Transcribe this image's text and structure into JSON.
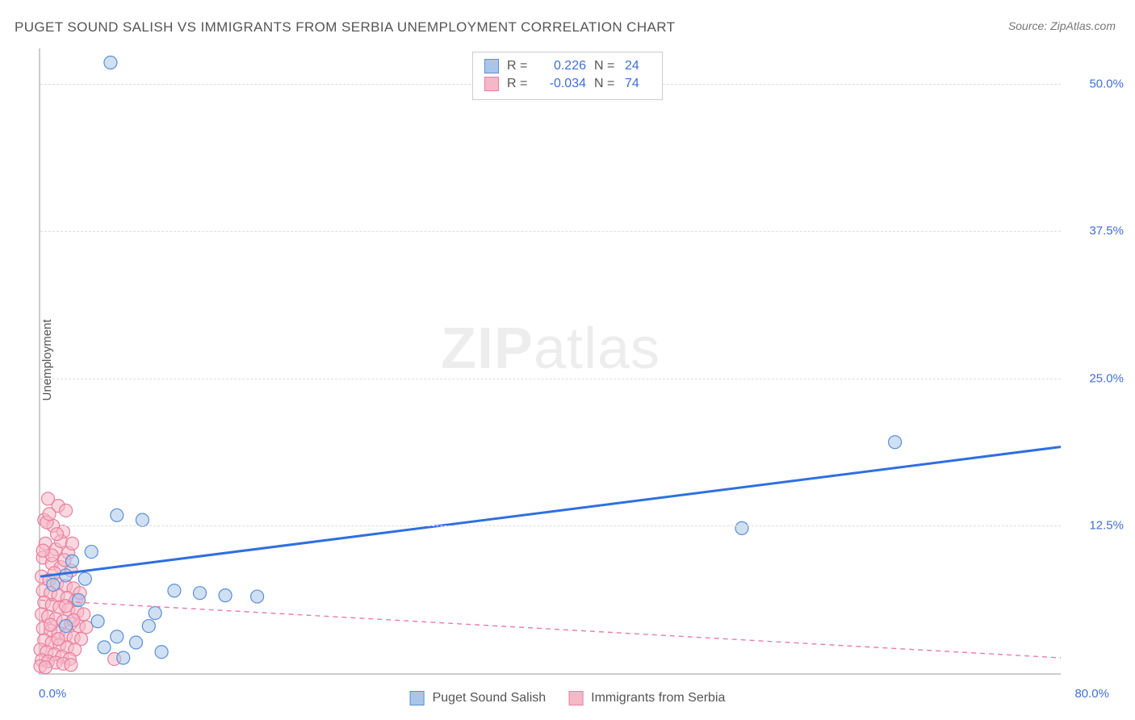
{
  "title": "PUGET SOUND SALISH VS IMMIGRANTS FROM SERBIA UNEMPLOYMENT CORRELATION CHART",
  "source": "Source: ZipAtlas.com",
  "y_axis_label": "Unemployment",
  "watermark_zip": "ZIP",
  "watermark_atlas": "atlas",
  "chart": {
    "type": "scatter",
    "x_range": [
      0,
      80
    ],
    "y_range": [
      0,
      53
    ],
    "x_origin_label": "0.0%",
    "x_max_label": "80.0%",
    "y_ticks": [
      12.5,
      25.0,
      37.5,
      50.0
    ],
    "y_tick_labels": [
      "12.5%",
      "25.0%",
      "37.5%",
      "50.0%"
    ],
    "grid_color": "#dddddd",
    "axis_color": "#cccccc",
    "tick_label_color": "#3f6fd6",
    "background_color": "#ffffff",
    "marker_radius": 8,
    "marker_stroke_width": 1.2,
    "series": [
      {
        "name": "Puget Sound Salish",
        "fill": "#a9c6ea",
        "stroke": "#5a8fd6",
        "fill_opacity": 0.55,
        "R": "0.226",
        "N": "24",
        "trend": {
          "y_at_x0": 8.2,
          "y_at_xmax": 19.2,
          "color": "#2f6fe0",
          "width": 3,
          "dash": "none"
        },
        "points": [
          [
            5.5,
            51.8
          ],
          [
            67.0,
            19.6
          ],
          [
            55.0,
            12.3
          ],
          [
            6.0,
            13.4
          ],
          [
            8.0,
            13.0
          ],
          [
            4.0,
            10.3
          ],
          [
            2.5,
            9.5
          ],
          [
            2.0,
            8.3
          ],
          [
            1.0,
            7.5
          ],
          [
            10.5,
            7.0
          ],
          [
            12.5,
            6.8
          ],
          [
            14.5,
            6.6
          ],
          [
            17.0,
            6.5
          ],
          [
            9.0,
            5.1
          ],
          [
            4.5,
            4.4
          ],
          [
            6.0,
            3.1
          ],
          [
            7.5,
            2.6
          ],
          [
            9.5,
            1.8
          ],
          [
            6.5,
            1.3
          ],
          [
            3.0,
            6.2
          ],
          [
            2.0,
            4.0
          ],
          [
            5.0,
            2.2
          ],
          [
            8.5,
            4.0
          ],
          [
            3.5,
            8.0
          ]
        ]
      },
      {
        "name": "Immigrants from Serbia",
        "fill": "#f5b8c7",
        "stroke": "#e87ea0",
        "fill_opacity": 0.55,
        "R": "-0.034",
        "N": "74",
        "trend": {
          "y_at_x0": 6.2,
          "y_at_xmax": 1.3,
          "color": "#e87ea0",
          "width": 1.4,
          "dash": "6,5"
        },
        "points": [
          [
            0.6,
            14.8
          ],
          [
            1.4,
            14.2
          ],
          [
            2.0,
            13.8
          ],
          [
            0.3,
            13.0
          ],
          [
            1.0,
            12.5
          ],
          [
            1.8,
            12.0
          ],
          [
            0.4,
            11.0
          ],
          [
            1.2,
            10.5
          ],
          [
            2.2,
            10.2
          ],
          [
            0.2,
            9.8
          ],
          [
            0.9,
            9.3
          ],
          [
            1.6,
            9.0
          ],
          [
            2.4,
            8.7
          ],
          [
            0.1,
            8.2
          ],
          [
            0.7,
            7.9
          ],
          [
            1.3,
            7.6
          ],
          [
            2.0,
            7.4
          ],
          [
            2.6,
            7.2
          ],
          [
            0.2,
            7.0
          ],
          [
            0.8,
            6.8
          ],
          [
            1.4,
            6.6
          ],
          [
            2.1,
            6.4
          ],
          [
            2.8,
            6.2
          ],
          [
            0.3,
            6.0
          ],
          [
            0.9,
            5.8
          ],
          [
            1.5,
            5.6
          ],
          [
            2.2,
            5.4
          ],
          [
            2.9,
            5.2
          ],
          [
            3.4,
            5.0
          ],
          [
            0.1,
            5.0
          ],
          [
            0.6,
            4.8
          ],
          [
            1.2,
            4.6
          ],
          [
            1.8,
            4.4
          ],
          [
            2.4,
            4.2
          ],
          [
            3.0,
            4.0
          ],
          [
            3.6,
            3.9
          ],
          [
            0.2,
            3.8
          ],
          [
            0.8,
            3.6
          ],
          [
            1.4,
            3.4
          ],
          [
            2.0,
            3.2
          ],
          [
            2.6,
            3.0
          ],
          [
            3.2,
            2.9
          ],
          [
            0.3,
            2.8
          ],
          [
            0.9,
            2.6
          ],
          [
            1.5,
            2.4
          ],
          [
            2.1,
            2.2
          ],
          [
            2.7,
            2.0
          ],
          [
            0.0,
            2.0
          ],
          [
            0.5,
            1.8
          ],
          [
            1.1,
            1.6
          ],
          [
            1.7,
            1.4
          ],
          [
            2.3,
            1.2
          ],
          [
            5.8,
            1.2
          ],
          [
            0.1,
            1.1
          ],
          [
            0.6,
            1.0
          ],
          [
            1.2,
            0.9
          ],
          [
            1.8,
            0.8
          ],
          [
            2.4,
            0.7
          ],
          [
            0.0,
            0.6
          ],
          [
            0.4,
            0.5
          ],
          [
            0.9,
            10.0
          ],
          [
            1.6,
            11.2
          ],
          [
            0.5,
            12.8
          ],
          [
            1.1,
            8.5
          ],
          [
            1.9,
            9.6
          ],
          [
            2.5,
            11.0
          ],
          [
            0.7,
            13.5
          ],
          [
            1.3,
            11.8
          ],
          [
            0.2,
            10.4
          ],
          [
            0.8,
            4.1
          ],
          [
            1.4,
            2.9
          ],
          [
            2.0,
            5.7
          ],
          [
            2.6,
            4.5
          ],
          [
            3.1,
            6.8
          ]
        ]
      }
    ]
  },
  "stats_legend": {
    "label_R": "R =",
    "label_N": "N ="
  },
  "bottom_legend": {
    "items": [
      "Puget Sound Salish",
      "Immigrants from Serbia"
    ]
  }
}
